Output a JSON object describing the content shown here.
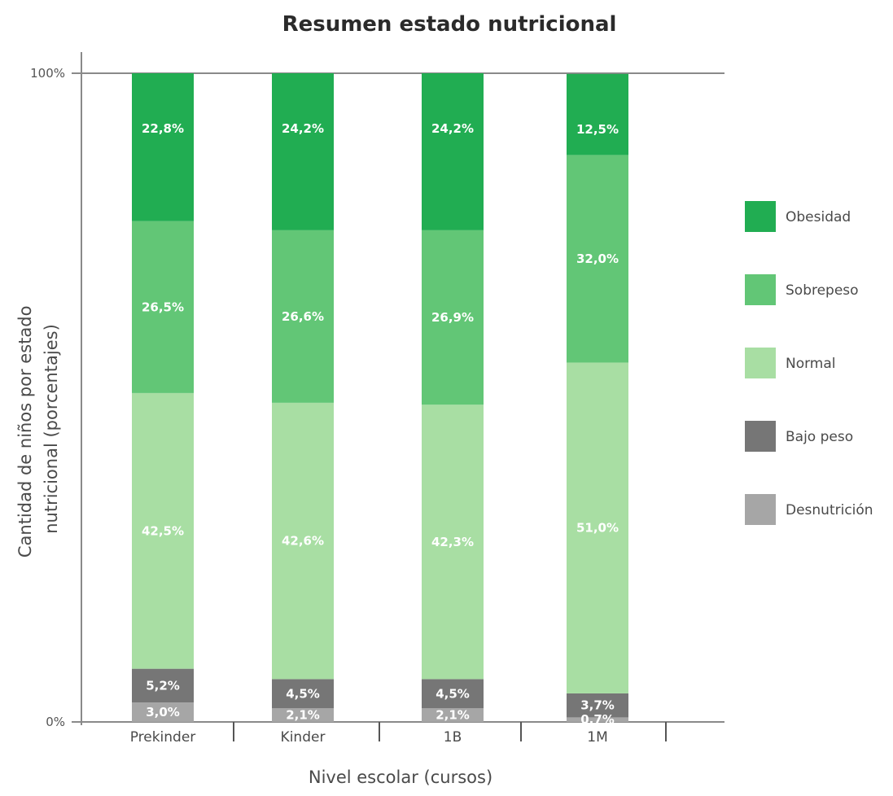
{
  "chart_data": {
    "type": "bar",
    "stacked": true,
    "title": "Resumen estado nutricional",
    "xlabel": "Nivel escolar (cursos)",
    "ylabel_lines": [
      "Cantidad de niños por estado",
      "nutricional (porcentajes)"
    ],
    "ylim": [
      0,
      100
    ],
    "y_ticks": [
      {
        "value": 0,
        "label": "0%"
      },
      {
        "value": 100,
        "label": "100%"
      }
    ],
    "categories": [
      "Prekinder",
      "Kinder",
      "1B",
      "1M"
    ],
    "series": [
      {
        "name": "Desnutrición",
        "color": "#a6a6a6",
        "values": [
          3.0,
          2.1,
          2.1,
          0.7
        ],
        "labels": [
          "3,0%",
          "2,1%",
          "2,1%",
          "0,7%"
        ]
      },
      {
        "name": "Bajo peso",
        "color": "#767676",
        "values": [
          5.2,
          4.5,
          4.5,
          3.7
        ],
        "labels": [
          "5,2%",
          "4,5%",
          "4,5%",
          "3,7%"
        ]
      },
      {
        "name": "Normal",
        "color": "#a8dea3",
        "values": [
          42.5,
          42.6,
          42.3,
          51.0
        ],
        "labels": [
          "42,5%",
          "42,6%",
          "42,3%",
          "51,0%"
        ]
      },
      {
        "name": "Sobrepeso",
        "color": "#62c676",
        "values": [
          26.5,
          26.6,
          26.9,
          32.0
        ],
        "labels": [
          "26,5%",
          "26,6%",
          "26,9%",
          "32,0%"
        ]
      },
      {
        "name": "Obesidad",
        "color": "#21ad52",
        "values": [
          22.8,
          24.2,
          24.2,
          12.5
        ],
        "labels": [
          "22,8%",
          "24,2%",
          "24,2%",
          "12,5%"
        ]
      }
    ],
    "legend_order": [
      "Obesidad",
      "Sobrepeso",
      "Normal",
      "Bajo peso",
      "Desnutrición"
    ],
    "legend_position": "right",
    "grid": false
  }
}
